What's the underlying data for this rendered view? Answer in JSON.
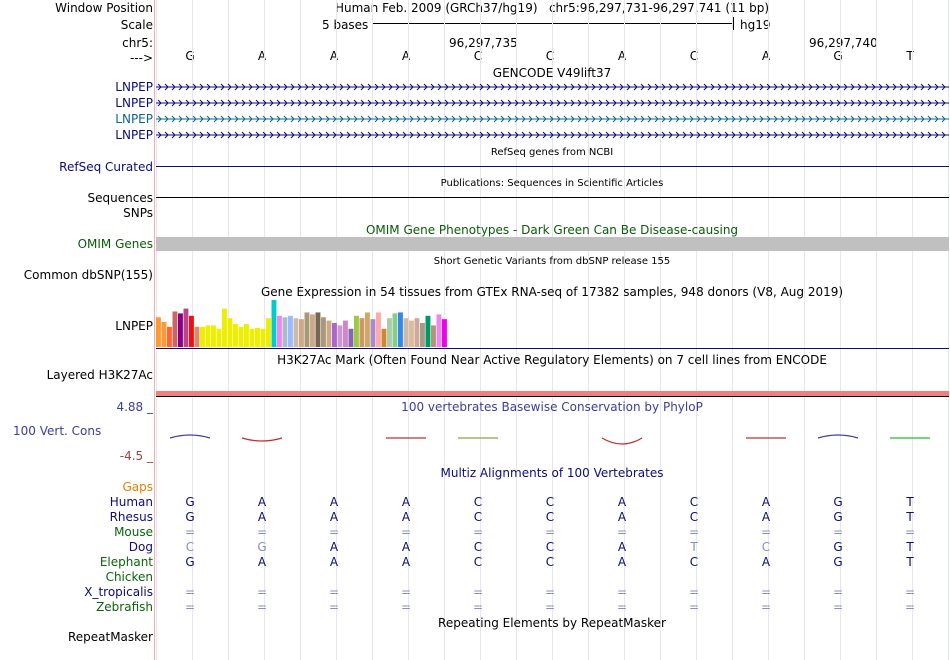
{
  "header": {
    "window_position_label": "Window Position",
    "window_position_text": "Human Feb. 2009 (GRCh37/hg19)   chr5:96,297,731-96,297,741 (11 bp)",
    "scale_label": "Scale",
    "scale_text": "5 bases",
    "scale_assembly": "hg19",
    "chrom_label": "chr5:",
    "pos1": "96,297,735",
    "pos2": "96,297,740",
    "strand_label": "--->"
  },
  "bases": [
    "G",
    "A",
    "A",
    "A",
    "C",
    "C",
    "A",
    "C",
    "A",
    "G",
    "T"
  ],
  "tracks": {
    "gencode_title": "GENCODE V49lift37",
    "gencode_rows": [
      "LNPEP",
      "LNPEP",
      "LNPEP",
      "LNPEP"
    ],
    "refseq_label": "RefSeq Curated",
    "refseq_title": "RefSeq genes from NCBI",
    "sequences_label": "Sequences",
    "sequences_title": "Publications: Sequences in Scientific Articles",
    "snps_label": "SNPs",
    "omim_title": "OMIM Gene Phenotypes - Dark Green Can Be Disease-causing",
    "omim_label": "OMIM Genes",
    "dbsnp_title": "Short Genetic Variants from dbSNP release 155",
    "dbsnp_label": "Common dbSNP(155)",
    "gtex_title": "Gene Expression in 54 tissues from GTEx RNA-seq of 17382 samples, 948 donors (V8, Aug 2019)",
    "gtex_label": "LNPEP",
    "h3k27_title": "H3K27Ac Mark (Often Found Near Active Regulatory Elements) on 7 cell lines from ENCODE",
    "h3k27_label": "Layered H3K27Ac",
    "cons_max": "4.88 _",
    "cons_label": "100 Vert. Cons",
    "cons_min": "-4.5 _",
    "cons_title": "100 vertebrates Basewise Conservation by PhyloP",
    "multiz_title": "Multiz Alignments of 100 Vertebrates",
    "repeat_title": "Repeating Elements by RepeatMasker",
    "repeat_label": "RepeatMasker"
  },
  "gtex_values": [
    0.62,
    0.52,
    0.42,
    0.74,
    0.7,
    0.8,
    0.65,
    0.42,
    0.42,
    0.45,
    0.45,
    0.38,
    0.8,
    0.6,
    0.48,
    0.42,
    0.48,
    0.38,
    0.4,
    0.38,
    0.6,
    0.98,
    0.65,
    0.62,
    0.65,
    0.6,
    0.58,
    0.72,
    0.68,
    0.72,
    0.62,
    0.55,
    0.5,
    0.45,
    0.55,
    0.38,
    0.65,
    0.6,
    0.72,
    0.58,
    0.72,
    0.38,
    0.6,
    0.7,
    0.72,
    0.6,
    0.55,
    0.6,
    0.5,
    0.65,
    0.45,
    0.68,
    0.58,
    0.42
  ],
  "gtex_colors": [
    "#ff9933",
    "#ff9933",
    "#ff6633",
    "#cc6666",
    "#880088",
    "#bb4488",
    "#ee1111",
    "#dd8866",
    "#eeee00",
    "#eeee00",
    "#eeee00",
    "#eeee00",
    "#eeee00",
    "#eeee00",
    "#eeee00",
    "#eeee00",
    "#eeee00",
    "#eeee00",
    "#eeee00",
    "#eeee00",
    "#eeee00",
    "#00cccc",
    "#ee88ee",
    "#aabbcc",
    "#99bbff",
    "#ccbbaa",
    "#ccaa88",
    "#aa9977",
    "#ccaa88",
    "#776655",
    "#aa9977",
    "#ccaa88",
    "#aa66cc",
    "#cc99cc",
    "#cc88cc",
    "#8866aa",
    "#99cc44",
    "#cc9966",
    "#ccaa66",
    "#aa88cc",
    "#ffaaaa",
    "#cc8833",
    "#aaccaa",
    "#88cc88",
    "#3388ee",
    "#ccbbaa",
    "#ddbb99",
    "#ccaa99",
    "#aa9988",
    "#009966",
    "#aa9977",
    "#ee88ee",
    "#ee00ee",
    "#ffffff"
  ],
  "colors": {
    "gene_blue": "#0c0c78",
    "gene_teal": "#0c6494",
    "omim_green": "#0a5a0a",
    "omim_bar": "#c0c0c0",
    "h3k27_red": "#f08080",
    "cons_blue": "#3c3ca0",
    "cons_red": "#a04040",
    "gaps_orange": "#e08000",
    "human_navy": "#0c0c78",
    "green_species": "#0a640a"
  },
  "species": [
    {
      "name": "Gaps",
      "color": "#e08000",
      "seq": []
    },
    {
      "name": "Human",
      "color": "#0c0c78",
      "seq": [
        "G",
        "A",
        "A",
        "A",
        "C",
        "C",
        "A",
        "C",
        "A",
        "G",
        "T"
      ]
    },
    {
      "name": "Rhesus",
      "color": "#0c0c78",
      "seq": [
        "G",
        "A",
        "A",
        "A",
        "C",
        "C",
        "A",
        "C",
        "A",
        "G",
        "T"
      ]
    },
    {
      "name": "Mouse",
      "color": "#0a640a",
      "seq": [
        "=",
        "=",
        "=",
        "=",
        "=",
        "=",
        "=",
        "=",
        "=",
        "=",
        "="
      ]
    },
    {
      "name": "Dog",
      "color": "#0c0c78",
      "seq": [
        "C",
        "G",
        "A",
        "A",
        "C",
        "C",
        "A",
        "T",
        "C",
        "G",
        "T"
      ]
    },
    {
      "name": "Elephant",
      "color": "#0a640a",
      "seq": [
        "G",
        "A",
        "A",
        "A",
        "C",
        "C",
        "A",
        "C",
        "A",
        "G",
        "T"
      ]
    },
    {
      "name": "Chicken",
      "color": "#0a640a",
      "seq": []
    },
    {
      "name": "X_tropicalis",
      "color": "#0c0c78",
      "seq": [
        "=",
        "=",
        "=",
        "=",
        "=",
        "=",
        "=",
        "=",
        "=",
        "=",
        "="
      ]
    },
    {
      "name": "Zebrafish",
      "color": "#0a640a",
      "seq": [
        "=",
        "=",
        "=",
        "=",
        "=",
        "=",
        "=",
        "=",
        "=",
        "=",
        "="
      ]
    }
  ]
}
